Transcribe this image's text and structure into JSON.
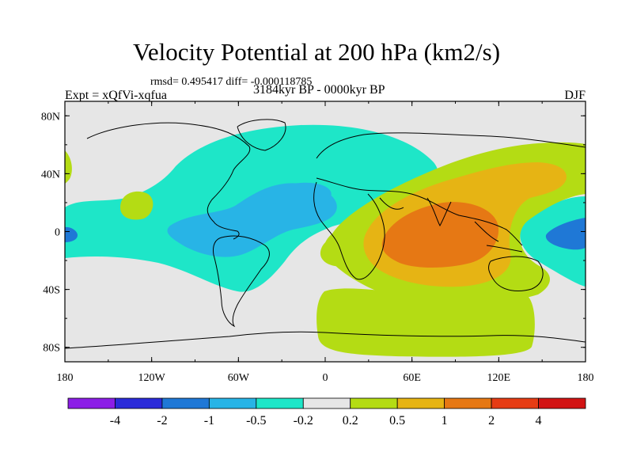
{
  "header": {
    "title": "Velocity Potential at 200 hPa (km2/s)",
    "stats": "rmsd= 0.495417 diff= -0.000118785",
    "experiment": "Expt = xQfVi-xqfua",
    "period": "3184kyr BP - 0000kyr BP",
    "season": "DJF"
  },
  "map": {
    "projection": "cylindrical equidistant",
    "lon_ticks": [
      "180",
      "120W",
      "60W",
      "0",
      "60E",
      "120E",
      "180"
    ],
    "lat_ticks": [
      "80N",
      "40N",
      "0",
      "40S",
      "80S"
    ]
  },
  "colorbar": {
    "labels": [
      "-4",
      "-2",
      "-1",
      "-0.5",
      "-0.2",
      "0.2",
      "0.5",
      "1",
      "2",
      "4"
    ],
    "colors": [
      "#8c1ee6",
      "#2b2bd9",
      "#1f78d6",
      "#28b4e6",
      "#1ee6c8",
      "#e6e6e6",
      "#b4dc14",
      "#e6b414",
      "#e67814",
      "#e63c14",
      "#d21414"
    ]
  },
  "regions": [
    {
      "name": "north-atlantic-negative",
      "color": "#1ee6c8"
    },
    {
      "name": "americas-negative-core",
      "color": "#28b4e6"
    },
    {
      "name": "west-pacific-negative",
      "color": "#1ee6c8"
    },
    {
      "name": "west-pacific-negative-core",
      "color": "#1f78d6"
    },
    {
      "name": "east-pacific-negative",
      "color": "#1ee6c8"
    },
    {
      "name": "indian-ocean-positive",
      "color": "#b4dc14"
    },
    {
      "name": "indian-ocean-positive-mid",
      "color": "#e6b414"
    },
    {
      "name": "indian-ocean-positive-core",
      "color": "#e67814"
    },
    {
      "name": "southern-ocean-positive",
      "color": "#b4dc14"
    }
  ]
}
